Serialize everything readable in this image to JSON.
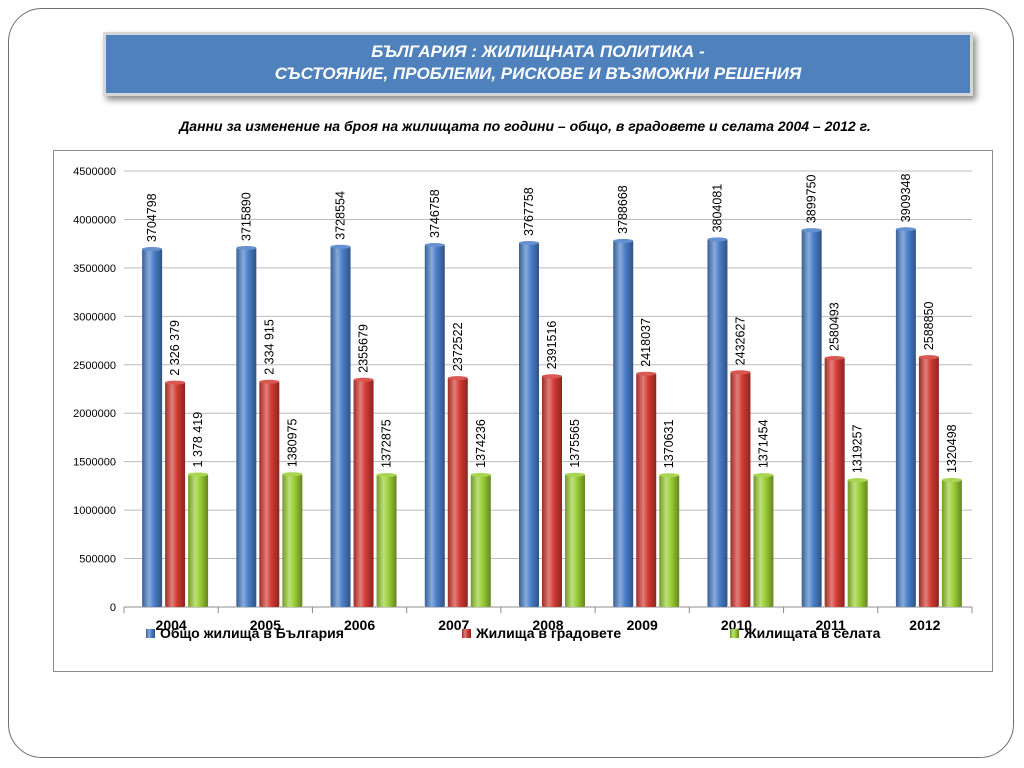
{
  "slide": {
    "title_line1": "БЪЛГАРИЯ : ЖИЛИЩНАТА ПОЛИТИКА -",
    "title_line2": "СЪСТОЯНИЕ, ПРОБЛЕМИ, РИСКОВЕ И ВЪЗМОЖНИ РЕШЕНИЯ",
    "subtitle": "Данни за изменение на броя на жилищата по години – общо, в градовете и селата 2004 – 2012 г."
  },
  "colors": {
    "banner": "#4f81bd",
    "series1": "#4a7ec8",
    "series2": "#d23a33",
    "series3": "#9acd35"
  },
  "chart_data": {
    "type": "bar",
    "categories": [
      "2004",
      "2005",
      "2006",
      "2007",
      "2008",
      "2009",
      "2010",
      "2011",
      "2012"
    ],
    "series": [
      {
        "name": "Общо жилища в България",
        "values": [
          3704798,
          3715890,
          3728554,
          3746758,
          3767758,
          3788668,
          3804081,
          3899750,
          3909348
        ],
        "labels": [
          "3704798",
          "3715890",
          "3728554",
          "3746758",
          "3767758",
          "3788668",
          "3804081",
          "3899750",
          "3909348"
        ]
      },
      {
        "name": "Жилища в градовете",
        "values": [
          2326379,
          2334915,
          2355679,
          2372522,
          2391516,
          2418037,
          2432627,
          2580493,
          2588850
        ],
        "labels": [
          "2 326 379",
          "2 334 915",
          "2355679",
          "2372522",
          "2391516",
          "2418037",
          "2432627",
          "2580493",
          "2588850"
        ]
      },
      {
        "name": "Жилищата  в селата",
        "values": [
          1378419,
          1380975,
          1372875,
          1374236,
          1375565,
          1370631,
          1371454,
          1319257,
          1320498
        ],
        "labels": [
          "1 378 419",
          "1380975",
          "1372875",
          "1374236",
          "1375565",
          "1370631",
          "1371454",
          "1319257",
          "1320498"
        ]
      }
    ],
    "y_ticks": [
      "0",
      "500000",
      "1000000",
      "1500000",
      "2000000",
      "2500000",
      "3000000",
      "3500000",
      "4000000",
      "4500000"
    ],
    "ylim": [
      0,
      4500000
    ],
    "grid": true,
    "legend_position": "bottom"
  }
}
